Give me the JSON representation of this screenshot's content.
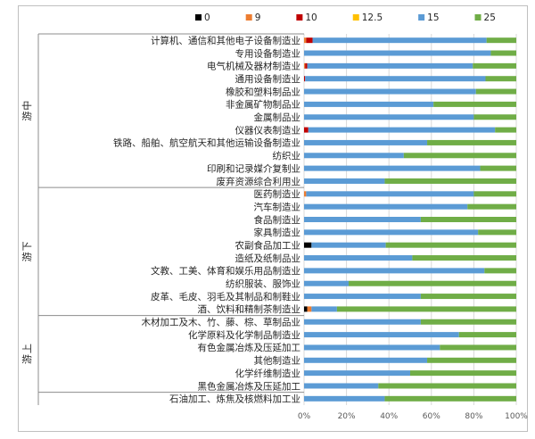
{
  "chart_data": {
    "type": "bar",
    "orientation": "horizontal",
    "stacked": "percent",
    "groups": [
      {
        "name": "中游",
        "start": 0,
        "end": 11
      },
      {
        "name": "下游",
        "start": 12,
        "end": 21
      },
      {
        "name": "上游",
        "start": 22,
        "end": 27
      }
    ],
    "categories": [
      "计算机、通信和其他电子设备制造业",
      "专用设备制造业",
      "电气机械及器材制造业",
      "通用设备制造业",
      "橡胶和塑料制品业",
      "非金属矿物制品业",
      "金属制品业",
      "仪器仪表制造业",
      "铁路、船舶、航空航天和其他运输设备制造业",
      "纺织业",
      "印刷和记录媒介复制业",
      "废弃资源综合利用业",
      "医药制造业",
      "汽车制造业",
      "食品制造业",
      "家具制造业",
      "农副食品加工业",
      "造纸及纸制品业",
      "文教、工美、体育和娱乐用品制造业",
      "纺织服装、服饰业",
      "皮革、毛皮、羽毛及其制品和制鞋业",
      "酒、饮料和精制茶制造业",
      "木材加工及木、竹、藤、棕、草制品业",
      "化学原料及化学制品制造业",
      "有色金属冶炼及压延加工",
      "其他制造业",
      "化学纤维制造业",
      "黑色金属冶炼及压延加工",
      "石油加工、炼焦及核燃料加工业"
    ],
    "series": [
      {
        "name": "0",
        "color": "#000000",
        "values": [
          0,
          0,
          0,
          0,
          0,
          0,
          0,
          0,
          0,
          0,
          0,
          0,
          0,
          0,
          0,
          0,
          3.5,
          0,
          0,
          0,
          0,
          1.5,
          0,
          0,
          0,
          0,
          0,
          0,
          0
        ]
      },
      {
        "name": "9",
        "color": "#ED7D31",
        "values": [
          1,
          0,
          0.5,
          0,
          0,
          0,
          0,
          0,
          0,
          0,
          0,
          0,
          1,
          0,
          0,
          0,
          0,
          0,
          0,
          0,
          0,
          2,
          0,
          0,
          0,
          0,
          0,
          0,
          0
        ]
      },
      {
        "name": "10",
        "color": "#C00000",
        "values": [
          3,
          0,
          1,
          0.5,
          0,
          0,
          0,
          2,
          0,
          0,
          0,
          0,
          0,
          0,
          0,
          0,
          0,
          0,
          0,
          0,
          0,
          0,
          0,
          0,
          0,
          0,
          0,
          0,
          0
        ]
      },
      {
        "name": "12.5",
        "color": "#FFC000",
        "values": [
          0,
          0,
          0,
          0,
          0,
          0,
          0,
          0,
          0,
          0,
          0,
          0,
          0,
          0,
          0,
          0,
          0,
          0,
          0,
          0,
          0,
          0,
          0,
          0,
          0,
          0,
          0,
          0,
          0
        ]
      },
      {
        "name": "15",
        "color": "#5B9BD5",
        "values": [
          82,
          88,
          78,
          85,
          81,
          61,
          80,
          88,
          58,
          47,
          83,
          38,
          79,
          77,
          55,
          82,
          35,
          51,
          85,
          21,
          55,
          12,
          55,
          73,
          64,
          58,
          50,
          35,
          38
        ]
      },
      {
        "name": "25",
        "color": "#70AD47",
        "values": [
          14,
          12,
          20.5,
          14.5,
          19,
          39,
          20,
          10,
          42,
          53,
          17,
          62,
          20,
          23,
          45,
          18,
          61.5,
          49,
          15,
          79,
          45,
          84.5,
          45,
          27,
          36,
          42,
          50,
          65,
          62
        ]
      }
    ],
    "xlim": [
      0,
      100
    ],
    "x_ticks": [
      "0%",
      "20%",
      "40%",
      "60%",
      "80%",
      "100%"
    ],
    "legend_position": "top-right",
    "grid": true,
    "title": "",
    "xlabel": "",
    "ylabel": ""
  }
}
